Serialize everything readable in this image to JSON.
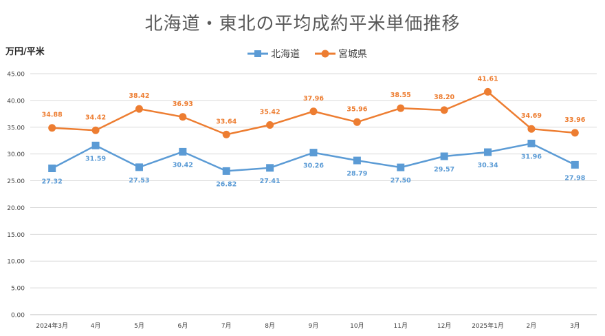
{
  "chart_data": {
    "type": "line",
    "title": "北海道・東北の平均成約平米単価推移",
    "ylabel": "万円/平米",
    "xlabel": "",
    "categories": [
      "2024年3月",
      "4月",
      "5月",
      "6月",
      "7月",
      "8月",
      "9月",
      "10月",
      "11月",
      "12月",
      "2025年1月",
      "2月",
      "3月"
    ],
    "ylim": [
      0,
      45
    ],
    "yticks": [
      "0.00",
      "5.00",
      "10.00",
      "15.00",
      "20.00",
      "25.00",
      "30.00",
      "35.00",
      "40.00",
      "45.00"
    ],
    "grid": true,
    "legend_position": "top",
    "series": [
      {
        "name": "北海道",
        "color": "#5b9bd5",
        "marker": "square",
        "values": [
          27.32,
          31.59,
          27.53,
          30.42,
          26.82,
          27.41,
          30.26,
          28.79,
          27.5,
          29.57,
          30.34,
          31.96,
          27.98
        ],
        "labels": [
          "27.32",
          "31.59",
          "27.53",
          "30.42",
          "26.82",
          "27.41",
          "30.26",
          "28.79",
          "27.50",
          "29.57",
          "30.34",
          "31.96",
          "27.98"
        ]
      },
      {
        "name": "宮城県",
        "color": "#ed7d31",
        "marker": "circle",
        "values": [
          34.88,
          34.42,
          38.42,
          36.93,
          33.64,
          35.42,
          37.96,
          35.96,
          38.55,
          38.2,
          41.61,
          34.69,
          33.96
        ],
        "labels": [
          "34.88",
          "34.42",
          "38.42",
          "36.93",
          "33.64",
          "35.42",
          "37.96",
          "35.96",
          "38.55",
          "38.20",
          "41.61",
          "34.69",
          "33.96"
        ]
      }
    ]
  }
}
